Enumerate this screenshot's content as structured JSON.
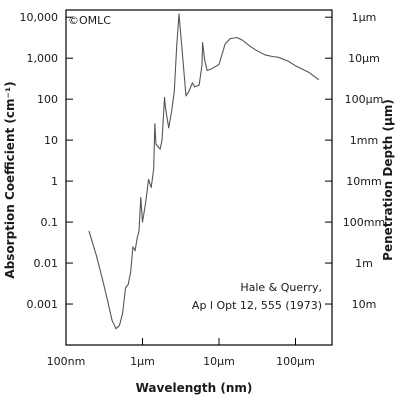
{
  "chart_data": {
    "type": "line",
    "copyright": "©OMLC",
    "xlabel": "Wavelength (nm)",
    "ylabel": "Absorption Coefficient (cm⁻¹)",
    "y2label": "Penetration Depth (µm)",
    "xscale": "log",
    "yscale": "log",
    "xlim": [
      100,
      300000
    ],
    "ylim": [
      0.0001,
      15000
    ],
    "x_ticks": [
      {
        "value": 100,
        "label": "100nm"
      },
      {
        "value": 1000,
        "label": "1µm"
      },
      {
        "value": 10000,
        "label": "10µm"
      },
      {
        "value": 100000,
        "label": "100µm"
      }
    ],
    "y_ticks": [
      {
        "value": 10000,
        "label": "10,000"
      },
      {
        "value": 1000,
        "label": "1,000"
      },
      {
        "value": 100,
        "label": "100"
      },
      {
        "value": 10,
        "label": "10"
      },
      {
        "value": 1,
        "label": "1"
      },
      {
        "value": 0.1,
        "label": "0.1"
      },
      {
        "value": 0.01,
        "label": "0.01"
      },
      {
        "value": 0.001,
        "label": "0.001"
      }
    ],
    "y2_ticks": [
      {
        "value": 10000,
        "label": "1µm"
      },
      {
        "value": 1000,
        "label": "10µm"
      },
      {
        "value": 100,
        "label": "100µm"
      },
      {
        "value": 10,
        "label": "1mm"
      },
      {
        "value": 1,
        "label": "10mm"
      },
      {
        "value": 0.1,
        "label": "100mm"
      },
      {
        "value": 0.01,
        "label": "1m"
      },
      {
        "value": 0.001,
        "label": "10m"
      }
    ],
    "annotation": [
      "Hale & Querry,",
      "Ap l Opt 12, 555 (1973)"
    ],
    "grid": false,
    "series": [
      {
        "color": "#555555",
        "points": [
          [
            200,
            0.06
          ],
          [
            250,
            0.015
          ],
          [
            300,
            0.004
          ],
          [
            350,
            0.0012
          ],
          [
            400,
            0.0004
          ],
          [
            450,
            0.00025
          ],
          [
            500,
            0.0003
          ],
          [
            550,
            0.0006
          ],
          [
            600,
            0.0025
          ],
          [
            650,
            0.003
          ],
          [
            700,
            0.006
          ],
          [
            750,
            0.025
          ],
          [
            800,
            0.02
          ],
          [
            850,
            0.04
          ],
          [
            900,
            0.06
          ],
          [
            950,
            0.4
          ],
          [
            1000,
            0.1
          ],
          [
            1100,
            0.3
          ],
          [
            1200,
            1.1
          ],
          [
            1300,
            0.7
          ],
          [
            1400,
            2.0
          ],
          [
            1450,
            25
          ],
          [
            1500,
            8
          ],
          [
            1700,
            6
          ],
          [
            1800,
            10
          ],
          [
            1940,
            110
          ],
          [
            2000,
            60
          ],
          [
            2200,
            20
          ],
          [
            2400,
            50
          ],
          [
            2600,
            150
          ],
          [
            2800,
            2000
          ],
          [
            3000,
            12000
          ],
          [
            3300,
            1500
          ],
          [
            3700,
            120
          ],
          [
            4000,
            150
          ],
          [
            4500,
            250
          ],
          [
            4800,
            200
          ],
          [
            5500,
            220
          ],
          [
            6000,
            700
          ],
          [
            6100,
            2400
          ],
          [
            6500,
            900
          ],
          [
            7000,
            500
          ],
          [
            8000,
            550
          ],
          [
            10000,
            700
          ],
          [
            12000,
            2200
          ],
          [
            14000,
            3000
          ],
          [
            17000,
            3200
          ],
          [
            20000,
            2800
          ],
          [
            25000,
            2000
          ],
          [
            30000,
            1600
          ],
          [
            40000,
            1200
          ],
          [
            50000,
            1100
          ],
          [
            60000,
            1050
          ],
          [
            80000,
            850
          ],
          [
            100000,
            650
          ],
          [
            150000,
            450
          ],
          [
            200000,
            300
          ]
        ]
      }
    ]
  }
}
